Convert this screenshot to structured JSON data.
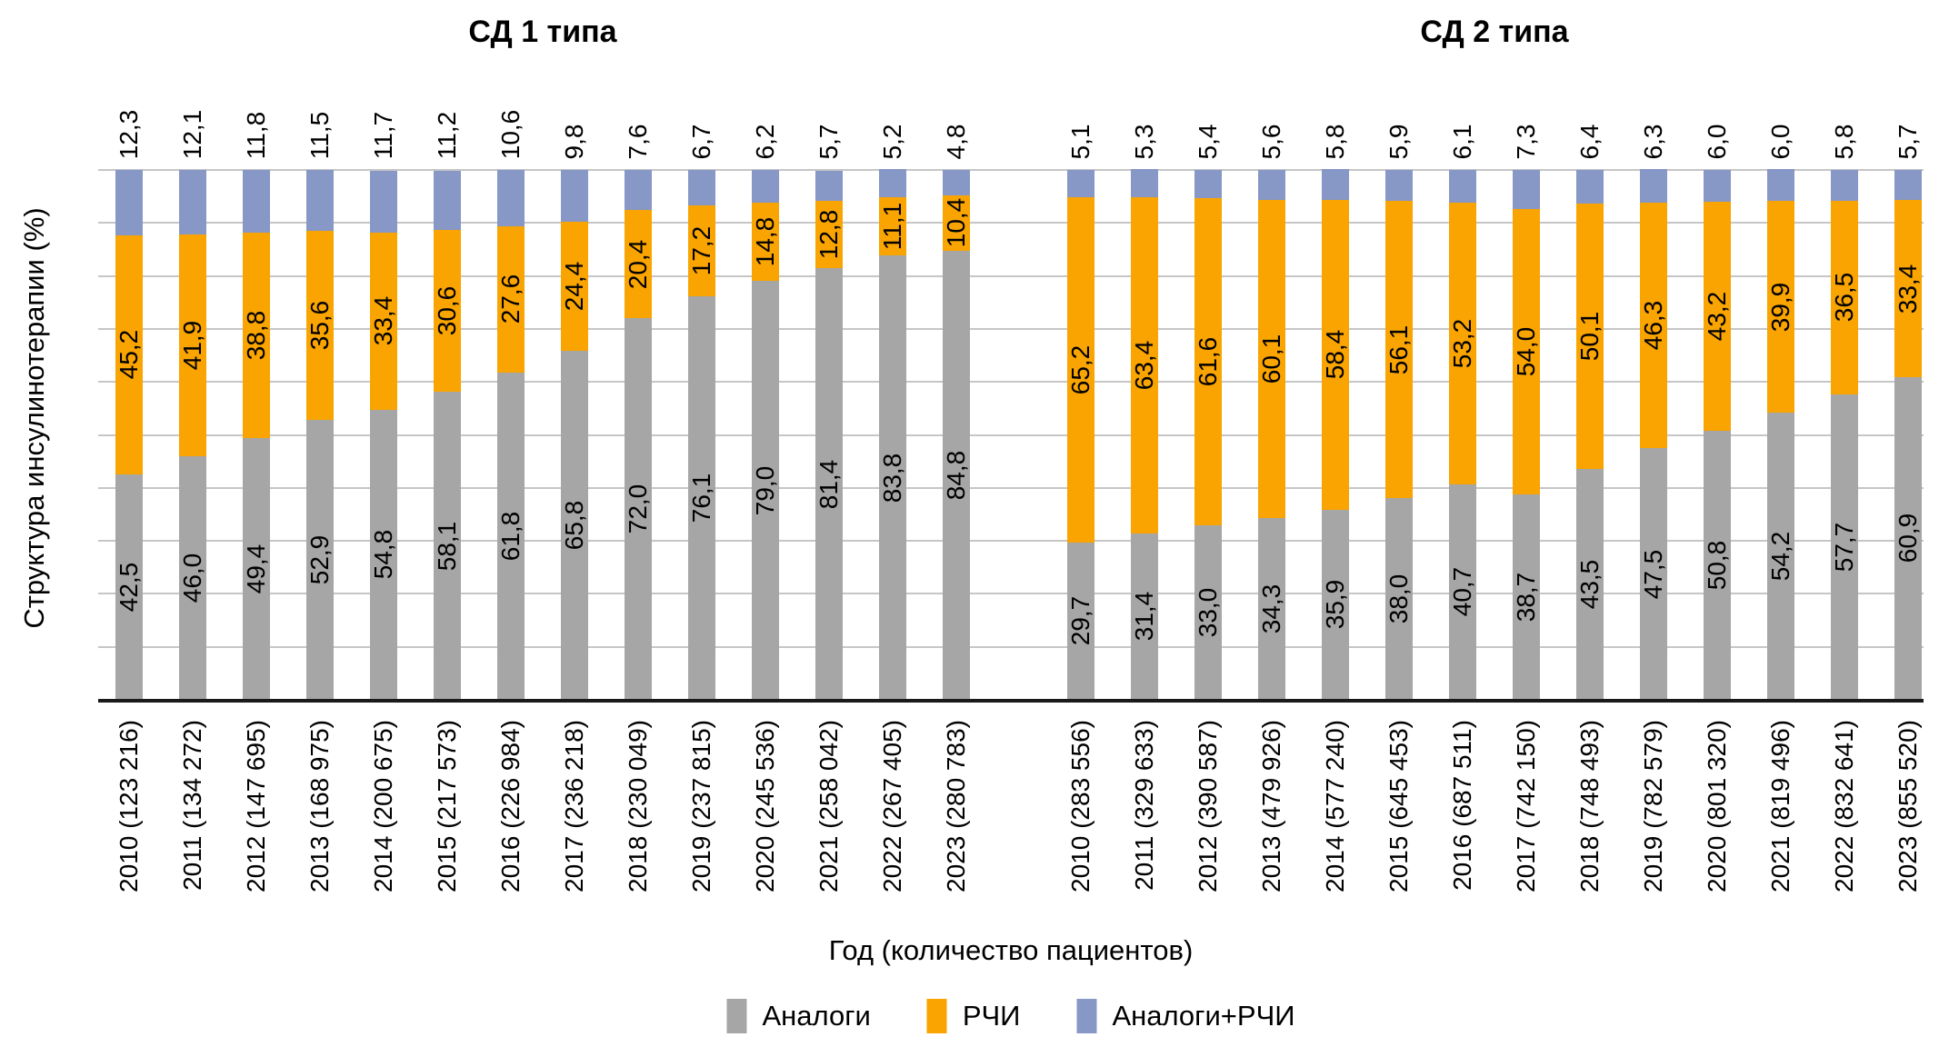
{
  "y_axis_label": "Структура инсулинотерапии (%)",
  "x_axis_label": "Год (количество пациентов)",
  "colors": {
    "analog": "#A6A6A6",
    "rchi": "#F9A400",
    "analog_rchi": "#8797C6",
    "gridline": "#C6C6C6",
    "axis": "#1A1A1A"
  },
  "legend": [
    {
      "label": "Аналоги",
      "color": "#A6A6A6"
    },
    {
      "label": "РЧИ",
      "color": "#F9A400"
    },
    {
      "label": "Аналоги+РЧИ",
      "color": "#8797C6"
    }
  ],
  "chart_data": [
    {
      "type": "bar",
      "stacked": true,
      "title": "СД 1 типа",
      "ylim": [
        0,
        100
      ],
      "grid": true,
      "gridline_step": 10,
      "categories": [
        "2010 (123 216)",
        "2011 (134 272)",
        "2012 (147 695)",
        "2013 (168 975)",
        "2014 (200 675)",
        "2015 (217 573)",
        "2016 (226 984)",
        "2017 (236 218)",
        "2018 (230 049)",
        "2019 (237 815)",
        "2020 (245 536)",
        "2021 (258 042)",
        "2022 (267 405)",
        "2023 (280 783)"
      ],
      "series": [
        {
          "name": "Аналоги",
          "color": "#A6A6A6",
          "values": [
            42.5,
            46.0,
            49.4,
            52.9,
            54.8,
            58.1,
            61.8,
            65.8,
            72.0,
            76.1,
            79.0,
            81.4,
            83.8,
            84.8
          ]
        },
        {
          "name": "РЧИ",
          "color": "#F9A400",
          "values": [
            45.2,
            41.9,
            38.8,
            35.6,
            33.4,
            30.6,
            27.6,
            24.4,
            20.4,
            17.2,
            14.8,
            12.8,
            11.1,
            10.4
          ]
        },
        {
          "name": "Аналоги+РЧИ",
          "color": "#8797C6",
          "values": [
            12.3,
            12.1,
            11.8,
            11.5,
            11.7,
            11.2,
            10.6,
            9.8,
            7.6,
            6.7,
            6.2,
            5.7,
            5.2,
            4.8
          ]
        }
      ]
    },
    {
      "type": "bar",
      "stacked": true,
      "title": "СД 2 типа",
      "ylim": [
        0,
        100
      ],
      "grid": true,
      "gridline_step": 10,
      "categories": [
        "2010 (283 556)",
        "2011 (329 633)",
        "2012 (390 587)",
        "2013 (479 926)",
        "2014 (577 240)",
        "2015 (645 453)",
        "2016 (687 511)",
        "2017 (742 150)",
        "2018 (748 493)",
        "2019 (782 579)",
        "2020 (801 320)",
        "2021 (819 496)",
        "2022 (832 641)",
        "2023 (855 520)"
      ],
      "series": [
        {
          "name": "Аналоги",
          "color": "#A6A6A6",
          "values": [
            29.7,
            31.4,
            33.0,
            34.3,
            35.9,
            38.0,
            40.7,
            38.7,
            43.5,
            47.5,
            50.8,
            54.2,
            57.7,
            60.9
          ]
        },
        {
          "name": "РЧИ",
          "color": "#F9A400",
          "values": [
            65.2,
            63.4,
            61.6,
            60.1,
            58.4,
            56.1,
            53.2,
            54.0,
            50.1,
            46.3,
            43.2,
            39.9,
            36.5,
            33.4
          ]
        },
        {
          "name": "Аналоги+РЧИ",
          "color": "#8797C6",
          "values": [
            5.1,
            5.3,
            5.4,
            5.6,
            5.8,
            5.9,
            6.1,
            7.3,
            6.4,
            6.3,
            6.0,
            6.0,
            5.8,
            5.7
          ]
        }
      ]
    }
  ]
}
